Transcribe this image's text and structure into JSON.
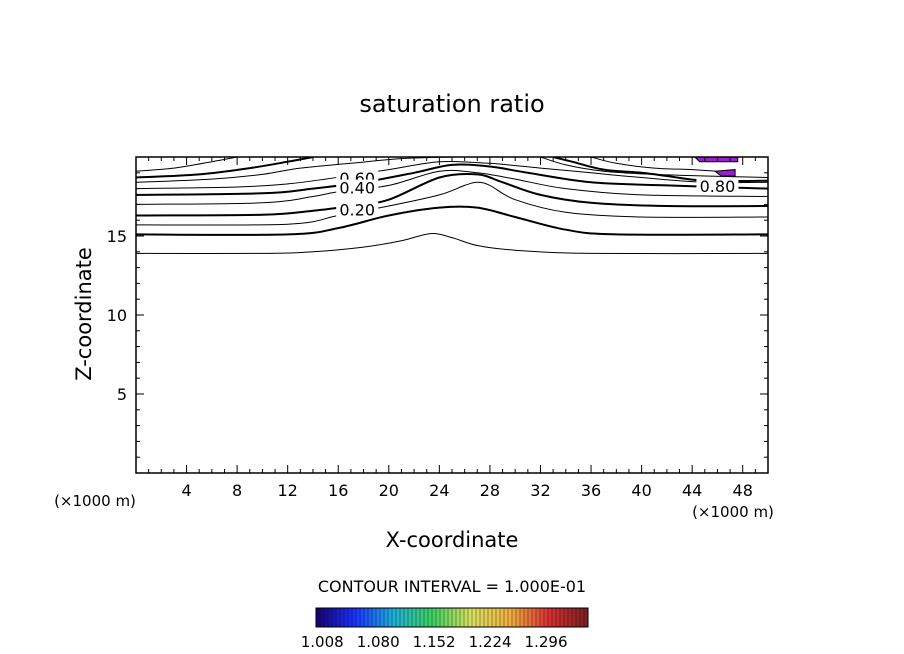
{
  "chart_data": {
    "type": "contour",
    "title": "saturation ratio",
    "xlabel": "X-coordinate",
    "ylabel": "Z-coordinate",
    "x_unit": "(×1000 m)",
    "y_unit": "(×1000 m)",
    "xlim": [
      0,
      50
    ],
    "ylim": [
      0,
      20
    ],
    "x_ticks": [
      4,
      8,
      12,
      16,
      20,
      24,
      28,
      32,
      36,
      40,
      44,
      48
    ],
    "y_ticks": [
      5,
      10,
      15
    ],
    "contour_interval_label": "CONTOUR INTERVAL = 1.000E-01",
    "contour_labels": [
      {
        "text": "0.60",
        "x": 17.5,
        "y": 18.6
      },
      {
        "text": "0.40",
        "x": 17.5,
        "y": 18.0
      },
      {
        "text": "0.20",
        "x": 17.5,
        "y": 16.6
      },
      {
        "text": "0.80",
        "x": 46.0,
        "y": 18.1
      }
    ],
    "contours": [
      {
        "level": 0.0,
        "bold": false,
        "points": [
          [
            0,
            13.9
          ],
          [
            10,
            13.9
          ],
          [
            14,
            14.0
          ],
          [
            18,
            14.3
          ],
          [
            21,
            14.7
          ],
          [
            23.3,
            15.15
          ],
          [
            25,
            14.9
          ],
          [
            27,
            14.4
          ],
          [
            30,
            14.1
          ],
          [
            36,
            13.9
          ],
          [
            50,
            13.9
          ]
        ]
      },
      {
        "level": 0.1,
        "bold": true,
        "points": [
          [
            0,
            15.1
          ],
          [
            12,
            15.1
          ],
          [
            16,
            15.5
          ],
          [
            20,
            16.3
          ],
          [
            24,
            16.8
          ],
          [
            27,
            16.8
          ],
          [
            30,
            16.2
          ],
          [
            34,
            15.4
          ],
          [
            38,
            15.1
          ],
          [
            50,
            15.1
          ]
        ]
      },
      {
        "level": 0.2,
        "bold": false,
        "points": [
          [
            0,
            15.7
          ],
          [
            12,
            15.75
          ],
          [
            16,
            16.3
          ],
          [
            20,
            16.9
          ],
          [
            24,
            17.6
          ],
          [
            26,
            18.2
          ],
          [
            27,
            18.4
          ],
          [
            28,
            18.2
          ],
          [
            30,
            17.3
          ],
          [
            34,
            16.5
          ],
          [
            40,
            16.2
          ],
          [
            50,
            16.2
          ]
        ]
      },
      {
        "level": 0.3,
        "bold": true,
        "points": [
          [
            0,
            16.3
          ],
          [
            10,
            16.35
          ],
          [
            14,
            16.6
          ],
          [
            17,
            16.9
          ],
          [
            20,
            17.3
          ],
          [
            24,
            18.7
          ],
          [
            27,
            18.9
          ],
          [
            29,
            18.4
          ],
          [
            32,
            17.6
          ],
          [
            36,
            17.1
          ],
          [
            42,
            16.9
          ],
          [
            50,
            16.9
          ]
        ]
      },
      {
        "level": 0.4,
        "bold": false,
        "points": [
          [
            0,
            17.0
          ],
          [
            10,
            17.1
          ],
          [
            14,
            17.5
          ],
          [
            16,
            17.8
          ],
          [
            20,
            18.2
          ],
          [
            24,
            19.1
          ],
          [
            27,
            19.0
          ],
          [
            30,
            18.6
          ],
          [
            34,
            18.0
          ],
          [
            40,
            17.6
          ],
          [
            50,
            17.5
          ]
        ]
      },
      {
        "level": 0.5,
        "bold": true,
        "points": [
          [
            0,
            17.6
          ],
          [
            10,
            17.7
          ],
          [
            14,
            18.0
          ],
          [
            18,
            18.4
          ],
          [
            22,
            19.0
          ],
          [
            25,
            19.5
          ],
          [
            28,
            19.4
          ],
          [
            31,
            19.0
          ],
          [
            36,
            18.4
          ],
          [
            42,
            18.2
          ],
          [
            50,
            18.0
          ]
        ]
      },
      {
        "level": 0.6,
        "bold": false,
        "points": [
          [
            0,
            18.0
          ],
          [
            8,
            18.1
          ],
          [
            12,
            18.3
          ],
          [
            15,
            18.6
          ],
          [
            20,
            19.2
          ],
          [
            24,
            19.7
          ],
          [
            28,
            19.6
          ],
          [
            32,
            19.3
          ],
          [
            36,
            19.0
          ],
          [
            40,
            18.7
          ],
          [
            45,
            18.4
          ],
          [
            50,
            18.4
          ]
        ]
      },
      {
        "level": 0.7,
        "bold": false,
        "points": [
          [
            0,
            18.4
          ],
          [
            6,
            18.6
          ],
          [
            10,
            18.9
          ],
          [
            13,
            19.3
          ],
          [
            17,
            19.6
          ],
          [
            21,
            19.9
          ],
          [
            25,
            20.0
          ]
        ]
      },
      {
        "level": 0.7,
        "bold": false,
        "points": [
          [
            32,
            20.0
          ],
          [
            34,
            19.5
          ],
          [
            37,
            19.1
          ],
          [
            41,
            18.9
          ],
          [
            45,
            18.8
          ],
          [
            50,
            18.7
          ]
        ]
      },
      {
        "level": 0.8,
        "bold": true,
        "points": [
          [
            0,
            18.7
          ],
          [
            5,
            18.9
          ],
          [
            9,
            19.3
          ],
          [
            12,
            19.7
          ],
          [
            14,
            20.0
          ]
        ]
      },
      {
        "level": 0.8,
        "bold": true,
        "points": [
          [
            33,
            20.0
          ],
          [
            34.5,
            19.7
          ],
          [
            37,
            19.2
          ],
          [
            40,
            19.0
          ],
          [
            42,
            18.8
          ],
          [
            45,
            18.5
          ],
          [
            50,
            18.5
          ]
        ]
      },
      {
        "level": 0.9,
        "bold": false,
        "points": [
          [
            0,
            19.1
          ],
          [
            3,
            19.3
          ],
          [
            6,
            19.7
          ],
          [
            8,
            20.0
          ]
        ]
      },
      {
        "level": 0.9,
        "bold": false,
        "points": [
          [
            36,
            20.0
          ],
          [
            38,
            19.6
          ],
          [
            41,
            19.3
          ],
          [
            44,
            19.2
          ],
          [
            46,
            19.1
          ]
        ]
      }
    ],
    "filled_regions": [
      {
        "color": "#9b1fd0",
        "points": [
          [
            44.2,
            20.0
          ],
          [
            47.6,
            20.0
          ],
          [
            47.6,
            19.7
          ],
          [
            44.6,
            19.7
          ]
        ]
      },
      {
        "color": "#9b1fd0",
        "points": [
          [
            45.8,
            19.1
          ],
          [
            47.4,
            19.2
          ],
          [
            47.4,
            18.8
          ],
          [
            46.3,
            18.8
          ]
        ]
      }
    ],
    "colorbar": {
      "tick_labels": [
        "1.008",
        "1.080",
        "1.152",
        "1.224",
        "1.296"
      ],
      "range": [
        1.0,
        1.35
      ],
      "colors": [
        "#1a0070",
        "#1a33ff",
        "#1fb0d8",
        "#3fd060",
        "#d8e060",
        "#f0b040",
        "#d83030",
        "#7a2020"
      ]
    }
  }
}
